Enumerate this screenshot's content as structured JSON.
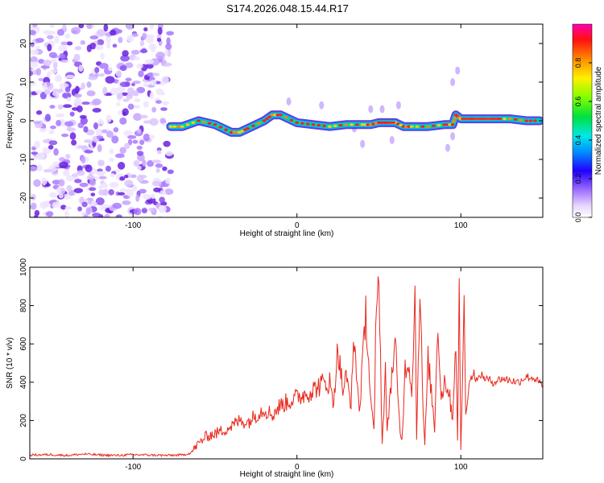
{
  "page_title": "S174.2026.048.15.44.R17",
  "colors": {
    "signal_line": "#e8281e",
    "noise_dots": "#7a3cd6",
    "frame": "#000000"
  },
  "chart_data": [
    {
      "type": "heatmap",
      "name": "spectrogram",
      "xlabel": "Height of straight line (km)",
      "ylabel": "Frequency (Hz)",
      "xlim": [
        -163,
        150
      ],
      "ylim": [
        -25,
        25
      ],
      "xticks": [
        -100,
        0,
        100
      ],
      "xtick_labels": [
        "-100",
        "0",
        "100"
      ],
      "yticks": [
        -20,
        -10,
        0,
        10,
        20
      ],
      "ytick_labels": [
        "-20",
        "-10",
        "0",
        "10",
        "20"
      ],
      "noise_region": [
        -163,
        -77
      ],
      "ridge": {
        "x": [
          -77,
          -70,
          -60,
          -50,
          -40,
          -35,
          -30,
          -20,
          -15,
          -10,
          0,
          10,
          20,
          30,
          40,
          45,
          50,
          55,
          60,
          65,
          70,
          80,
          90,
          95,
          97,
          100,
          110,
          120,
          130,
          140,
          148
        ],
        "y": [
          -1.5,
          -1.5,
          0,
          -1,
          -3,
          -3,
          -2,
          0,
          1.5,
          1.5,
          -0.5,
          -1,
          -1.5,
          -1,
          -1,
          -1,
          -0.5,
          -0.5,
          -0.5,
          -1.5,
          -1.5,
          -1.5,
          -1,
          -1,
          1.5,
          0.5,
          0.5,
          0.5,
          0.5,
          0,
          0
        ]
      },
      "colorbar": {
        "label": "Normalized spectral amplitude",
        "range": [
          0,
          1
        ],
        "ticks": [
          0.0,
          0.2,
          0.4,
          0.6,
          0.8
        ],
        "tick_labels": [
          "0.0",
          "0.2",
          "0.4",
          "0.6",
          "0.8"
        ]
      }
    },
    {
      "type": "line",
      "name": "snr",
      "xlabel": "Height of straight line (km)",
      "ylabel": "SNR (10 * v/v)",
      "xlim": [
        -163,
        150
      ],
      "ylim": [
        0,
        1000
      ],
      "xticks": [
        -100,
        0,
        100
      ],
      "xtick_labels": [
        "-100",
        "0",
        "100"
      ],
      "yticks": [
        0,
        200,
        400,
        600,
        800,
        1000
      ],
      "ytick_labels": [
        "0",
        "200",
        "400",
        "600",
        "800",
        "1000"
      ],
      "series": [
        {
          "name": "SNR",
          "x": [
            -163,
            -150,
            -140,
            -130,
            -120,
            -110,
            -100,
            -90,
            -80,
            -70,
            -65,
            -60,
            -55,
            -50,
            -45,
            -40,
            -35,
            -30,
            -25,
            -20,
            -15,
            -10,
            -5,
            0,
            5,
            10,
            15,
            20,
            22,
            25,
            28,
            30,
            33,
            35,
            38,
            40,
            42,
            45,
            47,
            48,
            50,
            52,
            54,
            55,
            57,
            60,
            62,
            63,
            64,
            66,
            68,
            70,
            72,
            73,
            75,
            77,
            78,
            80,
            82,
            84,
            86,
            88,
            90,
            92,
            95,
            97,
            98,
            99,
            100,
            101,
            102,
            103,
            105,
            108,
            110,
            112,
            115,
            120,
            125,
            130,
            135,
            140,
            145,
            150
          ],
          "y": [
            20,
            22,
            18,
            25,
            20,
            18,
            22,
            20,
            18,
            20,
            30,
            80,
            120,
            130,
            150,
            170,
            200,
            190,
            230,
            260,
            230,
            280,
            300,
            320,
            340,
            360,
            390,
            400,
            280,
            580,
            360,
            420,
            300,
            620,
            250,
            480,
            780,
            300,
            130,
            610,
            1000,
            70,
            470,
            120,
            370,
            600,
            250,
            150,
            90,
            470,
            520,
            350,
            860,
            120,
            900,
            250,
            60,
            520,
            350,
            160,
            730,
            310,
            410,
            380,
            220,
            640,
            80,
            850,
            60,
            420,
            840,
            220,
            400,
            450,
            400,
            440,
            420,
            400,
            420,
            410,
            400,
            430,
            420,
            380
          ]
        }
      ]
    }
  ]
}
